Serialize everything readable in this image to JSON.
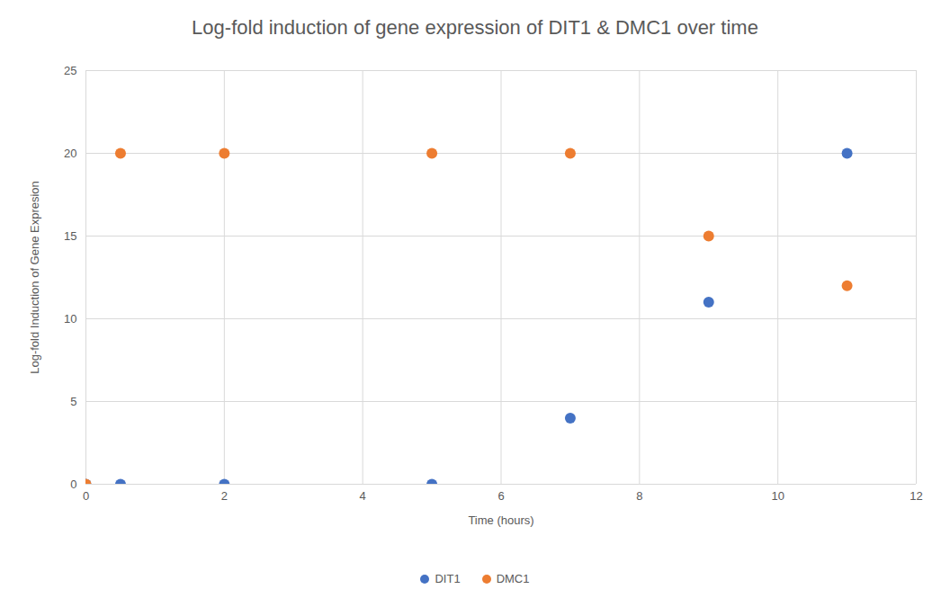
{
  "chart_data": {
    "type": "scatter",
    "title": "Log-fold induction of gene expression of DIT1 & DMC1 over time",
    "x_label": "Time (hours)",
    "y_label": "Log-fold Induction of Gene Expresion",
    "x": [
      0,
      0.5,
      2,
      5,
      7,
      9,
      11
    ],
    "series": [
      {
        "name": "DIT1",
        "color": "#4472c4",
        "values": [
          0,
          0,
          0,
          0,
          4,
          11,
          20
        ]
      },
      {
        "name": "DMC1",
        "color": "#ed7d31",
        "values": [
          0,
          20,
          20,
          20,
          20,
          15,
          12
        ]
      }
    ],
    "xlim": [
      0,
      12
    ],
    "ylim": [
      0,
      25
    ],
    "xticks": [
      0,
      2,
      4,
      6,
      8,
      10,
      12
    ],
    "yticks": [
      0,
      5,
      10,
      15,
      20,
      25
    ],
    "grid": true,
    "legend": "bottom",
    "marker": "circle"
  }
}
